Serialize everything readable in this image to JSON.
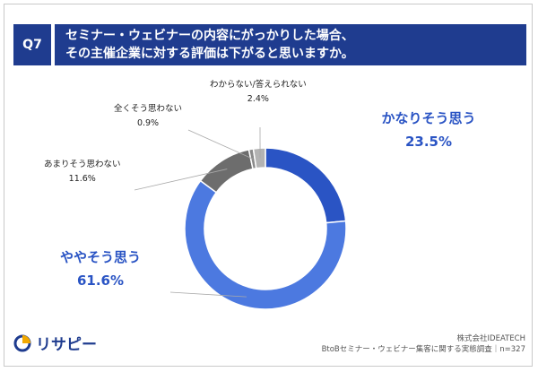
{
  "header": {
    "question_id": "Q7",
    "title_line1": "セミナー・ウェビナーの内容にがっかりした場合、",
    "title_line2": "その主催企業に対する評価は下がると思いますか。"
  },
  "chart_data": {
    "type": "pie",
    "donut": true,
    "categories": [
      "かなりそう思う",
      "ややそう思う",
      "あまりそう思わない",
      "全くそう思わない",
      "わからない/答えられない"
    ],
    "values": [
      23.5,
      61.6,
      11.6,
      0.9,
      2.4
    ],
    "value_labels": [
      "23.5%",
      "61.6%",
      "11.6%",
      "0.9%",
      "2.4%"
    ],
    "colors": [
      "#2a54c4",
      "#4c79e0",
      "#6d6d6d",
      "#8a8a8a",
      "#b3b3b3"
    ],
    "start_angle_deg": 0,
    "direction": "clockwise"
  },
  "footer": {
    "company": "株式会社IDEATECH",
    "survey": "BtoBセミナー・ウェビナー集客に関する実態調査｜n=327"
  },
  "logo": {
    "text": "リサピー",
    "icon": "lisapie-pie-icon"
  }
}
